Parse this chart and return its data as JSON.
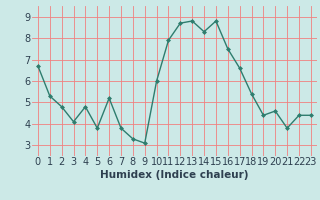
{
  "x": [
    0,
    1,
    2,
    3,
    4,
    5,
    6,
    7,
    8,
    9,
    10,
    11,
    12,
    13,
    14,
    15,
    16,
    17,
    18,
    19,
    20,
    21,
    22,
    23
  ],
  "y": [
    6.7,
    5.3,
    4.8,
    4.1,
    4.8,
    3.8,
    5.2,
    3.8,
    3.3,
    3.1,
    6.0,
    7.9,
    8.7,
    8.8,
    8.3,
    8.8,
    7.5,
    6.6,
    5.4,
    4.4,
    4.6,
    3.8,
    4.4,
    4.4
  ],
  "xlabel": "Humidex (Indice chaleur)",
  "ylim": [
    2.5,
    9.5
  ],
  "xlim": [
    -0.5,
    23.5
  ],
  "yticks": [
    3,
    4,
    5,
    6,
    7,
    8,
    9
  ],
  "xticks": [
    0,
    1,
    2,
    3,
    4,
    5,
    6,
    7,
    8,
    9,
    10,
    11,
    12,
    13,
    14,
    15,
    16,
    17,
    18,
    19,
    20,
    21,
    22,
    23
  ],
  "xtick_labels": [
    "0",
    "1",
    "2",
    "3",
    "4",
    "5",
    "6",
    "7",
    "8",
    "9",
    "10",
    "11",
    "12",
    "13",
    "14",
    "15",
    "16",
    "17",
    "18",
    "19",
    "20",
    "21",
    "22",
    "23"
  ],
  "line_color": "#2e7d6e",
  "marker_color": "#2e7d6e",
  "bg_color": "#cce9e7",
  "grid_color": "#f08080",
  "xlabel_fontsize": 7.5,
  "tick_fontsize": 7,
  "label_color": "#2e4050"
}
